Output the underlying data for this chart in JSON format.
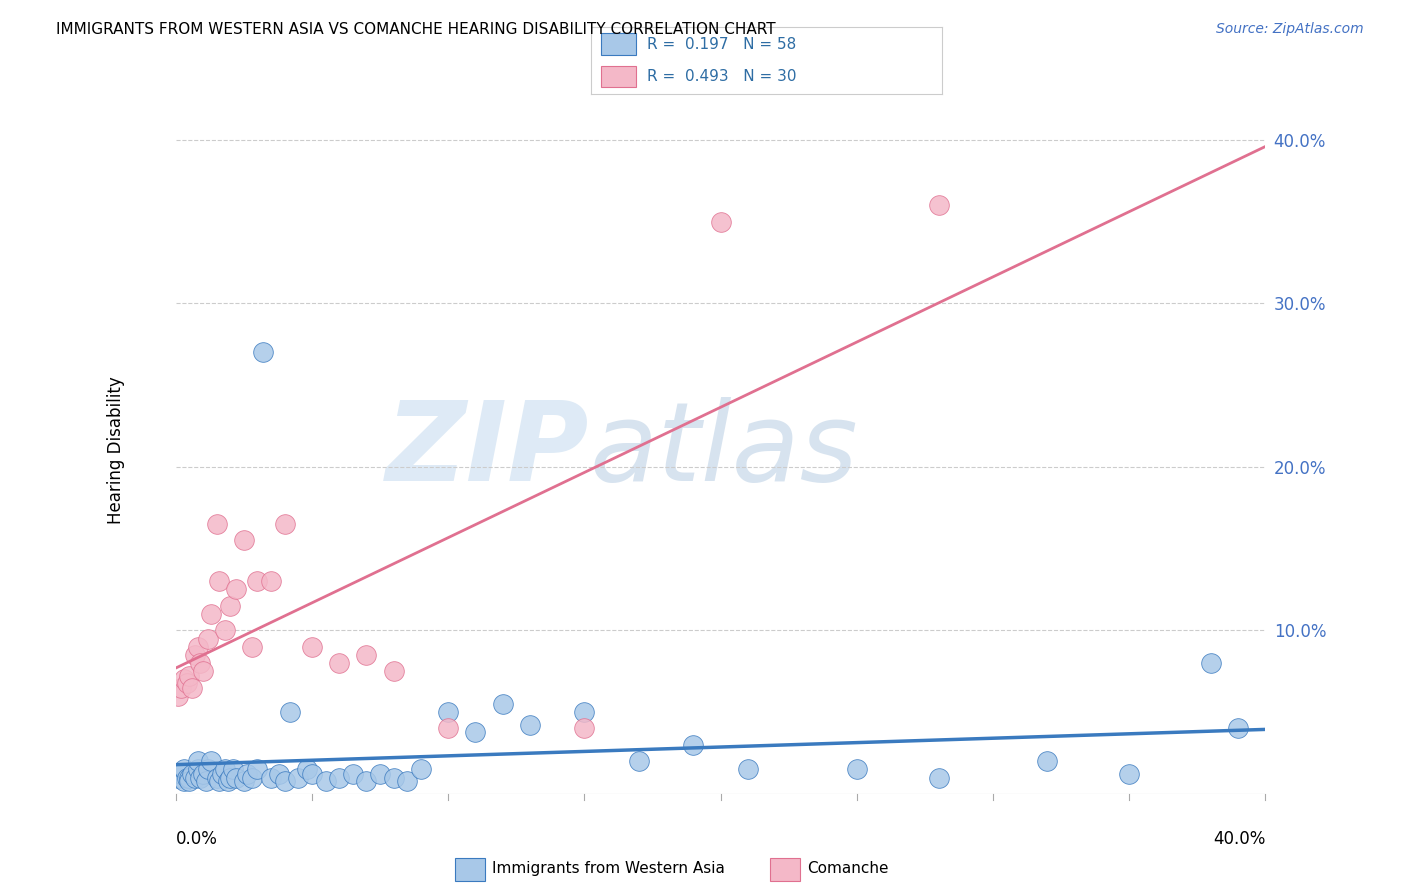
{
  "title": "IMMIGRANTS FROM WESTERN ASIA VS COMANCHE HEARING DISABILITY CORRELATION CHART",
  "source": "Source: ZipAtlas.com",
  "ylabel": "Hearing Disability",
  "xlim": [
    0.0,
    0.4
  ],
  "ylim": [
    0.0,
    0.42
  ],
  "blue_color": "#a8c8e8",
  "pink_color": "#f4b8c8",
  "line_blue": "#3a7abf",
  "line_pink": "#e07090",
  "blue_x": [
    0.001,
    0.002,
    0.003,
    0.003,
    0.004,
    0.005,
    0.005,
    0.006,
    0.007,
    0.008,
    0.008,
    0.009,
    0.01,
    0.011,
    0.012,
    0.013,
    0.015,
    0.016,
    0.017,
    0.018,
    0.019,
    0.02,
    0.021,
    0.022,
    0.025,
    0.026,
    0.028,
    0.03,
    0.032,
    0.035,
    0.038,
    0.04,
    0.042,
    0.045,
    0.048,
    0.05,
    0.055,
    0.06,
    0.065,
    0.07,
    0.075,
    0.08,
    0.085,
    0.09,
    0.1,
    0.11,
    0.12,
    0.13,
    0.15,
    0.17,
    0.19,
    0.21,
    0.25,
    0.28,
    0.32,
    0.35,
    0.38,
    0.39
  ],
  "blue_y": [
    0.01,
    0.012,
    0.008,
    0.015,
    0.01,
    0.01,
    0.008,
    0.012,
    0.01,
    0.015,
    0.02,
    0.01,
    0.012,
    0.008,
    0.015,
    0.02,
    0.01,
    0.008,
    0.012,
    0.015,
    0.008,
    0.01,
    0.015,
    0.01,
    0.008,
    0.012,
    0.01,
    0.015,
    0.27,
    0.01,
    0.012,
    0.008,
    0.05,
    0.01,
    0.015,
    0.012,
    0.008,
    0.01,
    0.012,
    0.008,
    0.012,
    0.01,
    0.008,
    0.015,
    0.05,
    0.038,
    0.055,
    0.042,
    0.05,
    0.02,
    0.03,
    0.015,
    0.015,
    0.01,
    0.02,
    0.012,
    0.08,
    0.04
  ],
  "pink_x": [
    0.001,
    0.002,
    0.003,
    0.004,
    0.005,
    0.006,
    0.007,
    0.008,
    0.009,
    0.01,
    0.012,
    0.013,
    0.015,
    0.016,
    0.018,
    0.02,
    0.022,
    0.025,
    0.028,
    0.03,
    0.035,
    0.04,
    0.05,
    0.06,
    0.07,
    0.08,
    0.1,
    0.15,
    0.2,
    0.28
  ],
  "pink_y": [
    0.06,
    0.065,
    0.07,
    0.068,
    0.072,
    0.065,
    0.085,
    0.09,
    0.08,
    0.075,
    0.095,
    0.11,
    0.165,
    0.13,
    0.1,
    0.115,
    0.125,
    0.155,
    0.09,
    0.13,
    0.13,
    0.165,
    0.09,
    0.08,
    0.085,
    0.075,
    0.04,
    0.04,
    0.35,
    0.36
  ],
  "ytick_vals": [
    0.1,
    0.2,
    0.3,
    0.4
  ],
  "ytick_labels": [
    "10.0%",
    "20.0%",
    "30.0%",
    "40.0%"
  ],
  "ytick_color": "#4472c4"
}
